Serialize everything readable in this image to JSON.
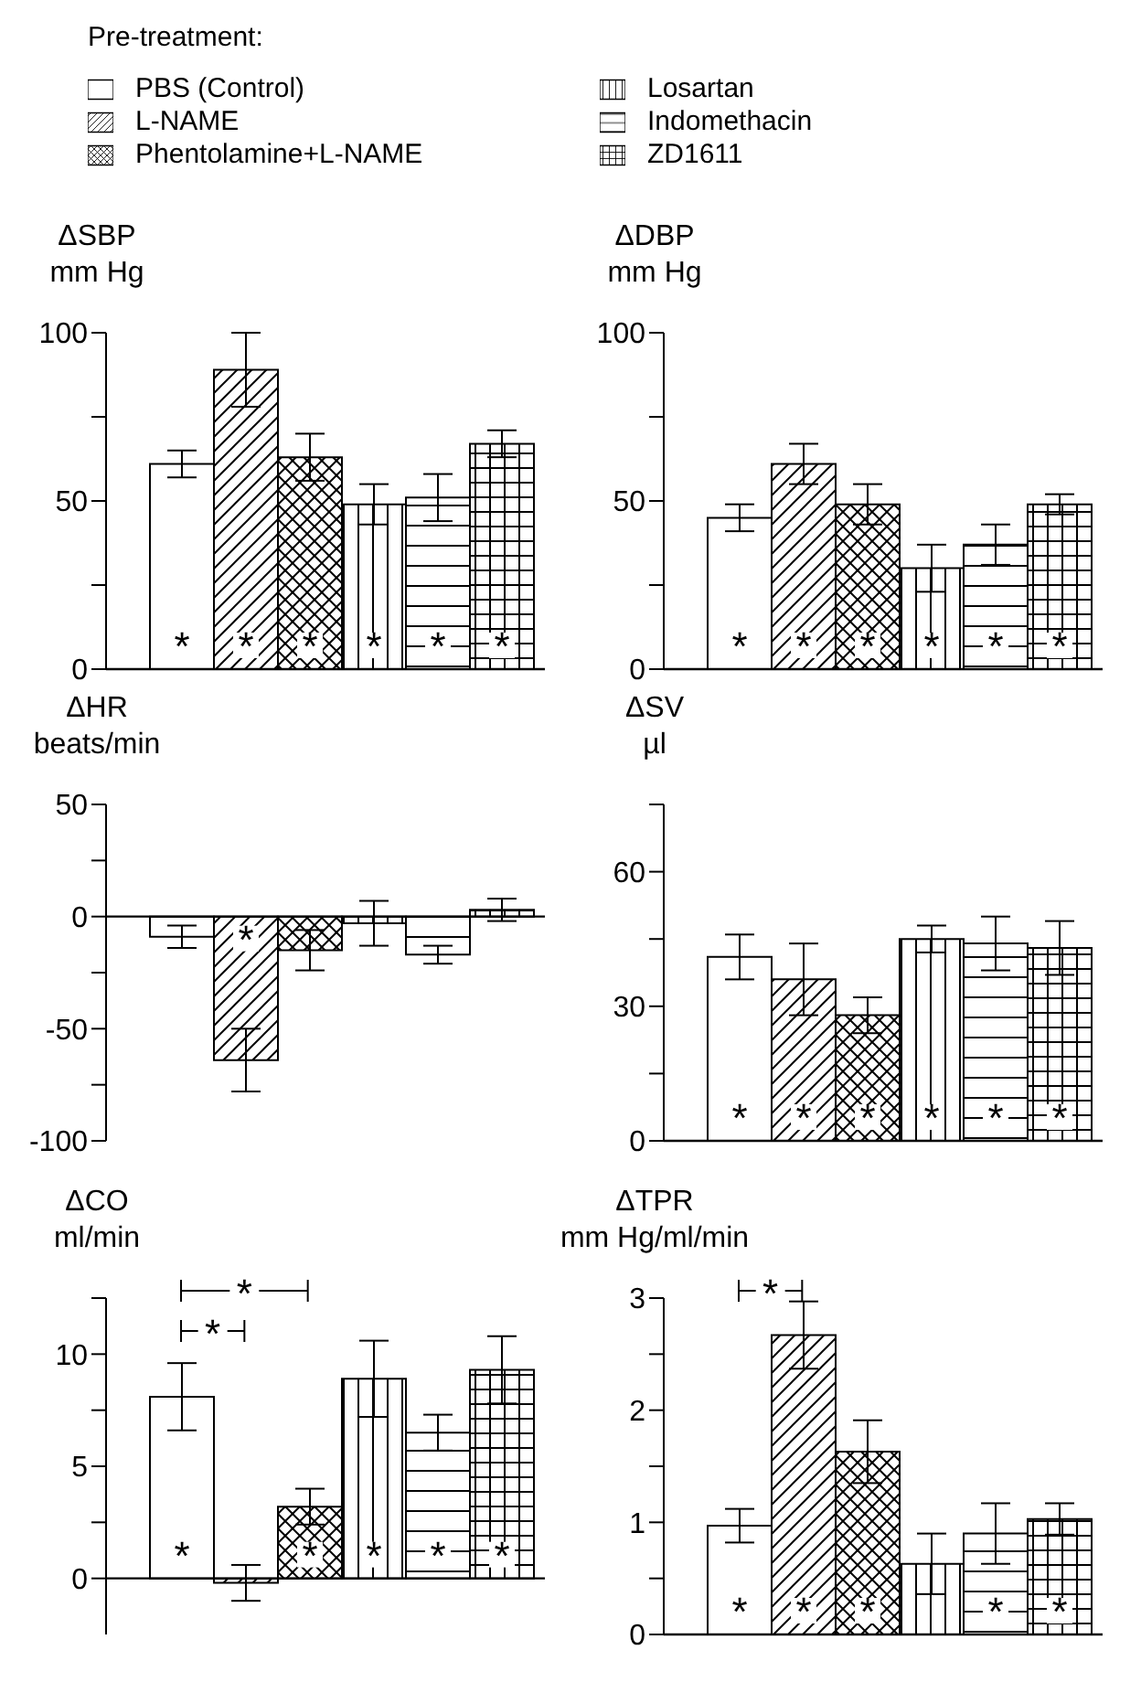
{
  "chart_data": [
    {
      "type": "bar",
      "title": "ΔSBP",
      "ylabel": "mm Hg",
      "legend_title": "Pre-treatment:",
      "legend": "top",
      "categories": [
        null
      ],
      "ylim": [
        0,
        100
      ],
      "yticks": [
        0,
        {
          "value": 25,
          "label": null
        },
        50,
        {
          "value": 75,
          "label": null
        },
        100
      ],
      "series": [
        {
          "name": "PBS (Control)",
          "color": "#000000",
          "values": [
            61
          ],
          "errors": [
            4
          ],
          "value_labels": [
            "*"
          ]
        },
        {
          "name": "L-NAME",
          "color": "#000000",
          "values": [
            89
          ],
          "errors": [
            11
          ],
          "value_labels": [
            "*"
          ]
        },
        {
          "name": "Phentolamine+L-NAME",
          "color": "#000000",
          "values": [
            63
          ],
          "errors": [
            7
          ],
          "value_labels": [
            "*"
          ]
        },
        {
          "name": "Losartan",
          "color": "#000000",
          "values": [
            49
          ],
          "errors": [
            6
          ],
          "value_labels": [
            "*"
          ]
        },
        {
          "name": "Indomethacin",
          "color": "#000000",
          "values": [
            51
          ],
          "errors": [
            7
          ],
          "value_labels": [
            "*"
          ]
        },
        {
          "name": "ZD1611",
          "color": "#000000",
          "values": [
            67
          ],
          "errors": [
            4
          ],
          "value_labels": [
            "*"
          ]
        }
      ]
    },
    {
      "type": "bar",
      "title": "ΔDBP",
      "ylabel": "mm Hg",
      "categories": [
        null
      ],
      "ylim": [
        0,
        100
      ],
      "yticks": [
        0,
        {
          "value": 25,
          "label": null
        },
        50,
        {
          "value": 75,
          "label": null
        },
        100
      ],
      "series": [
        {
          "color": "#000000",
          "values": [
            45
          ],
          "errors": [
            4
          ],
          "value_labels": [
            "*"
          ]
        },
        {
          "color": "#000000",
          "values": [
            61
          ],
          "errors": [
            6
          ],
          "value_labels": [
            "*"
          ]
        },
        {
          "color": "#000000",
          "values": [
            49
          ],
          "errors": [
            6
          ],
          "value_labels": [
            "*"
          ]
        },
        {
          "color": "#000000",
          "values": [
            30
          ],
          "errors": [
            7
          ],
          "value_labels": [
            "*"
          ]
        },
        {
          "color": "#000000",
          "values": [
            37
          ],
          "errors": [
            6
          ],
          "value_labels": [
            "*"
          ]
        },
        {
          "color": "#000000",
          "values": [
            49
          ],
          "errors": [
            3
          ],
          "value_labels": [
            "*"
          ]
        }
      ]
    },
    {
      "type": "bar",
      "title": "ΔHR",
      "ylabel": "beats/min",
      "categories": [
        null
      ],
      "ylim": [
        -100,
        50
      ],
      "yticks": [
        -100,
        {
          "value": -75,
          "label": null
        },
        -50,
        {
          "value": -25,
          "label": null
        },
        0,
        {
          "value": 25,
          "label": null
        },
        50
      ],
      "series": [
        {
          "color": "#000000",
          "values": [
            -9
          ],
          "errors": [
            5
          ],
          "value_labels": [
            null
          ]
        },
        {
          "color": "#000000",
          "values": [
            -64
          ],
          "errors": [
            14
          ],
          "value_labels": [
            "*"
          ]
        },
        {
          "color": "#000000",
          "values": [
            -15
          ],
          "errors": [
            9
          ],
          "value_labels": [
            null
          ]
        },
        {
          "color": "#000000",
          "values": [
            -3
          ],
          "errors": [
            10
          ],
          "value_labels": [
            null
          ]
        },
        {
          "color": "#000000",
          "values": [
            -17
          ],
          "errors": [
            4
          ],
          "value_labels": [
            null
          ]
        },
        {
          "color": "#000000",
          "values": [
            3
          ],
          "errors": [
            5
          ],
          "value_labels": [
            null
          ]
        }
      ]
    },
    {
      "type": "bar",
      "title": "ΔSV",
      "ylabel": "µl",
      "categories": [
        null
      ],
      "ylim": [
        0,
        75
      ],
      "yticks": [
        0,
        {
          "value": 15,
          "label": null
        },
        30,
        {
          "value": 45,
          "label": null
        },
        60,
        {
          "value": 75,
          "label": null
        }
      ],
      "series": [
        {
          "color": "#000000",
          "values": [
            41
          ],
          "errors": [
            5
          ],
          "value_labels": [
            "*"
          ]
        },
        {
          "color": "#000000",
          "values": [
            36
          ],
          "errors": [
            8
          ],
          "value_labels": [
            "*"
          ]
        },
        {
          "color": "#000000",
          "values": [
            28
          ],
          "errors": [
            4
          ],
          "value_labels": [
            "*"
          ]
        },
        {
          "color": "#000000",
          "values": [
            45
          ],
          "errors": [
            3
          ],
          "value_labels": [
            "*"
          ]
        },
        {
          "color": "#000000",
          "values": [
            44
          ],
          "errors": [
            6
          ],
          "value_labels": [
            "*"
          ]
        },
        {
          "color": "#000000",
          "values": [
            43
          ],
          "errors": [
            6
          ],
          "value_labels": [
            "*"
          ]
        }
      ]
    },
    {
      "type": "bar",
      "title": "ΔCO",
      "ylabel": "ml/min",
      "categories": [
        null
      ],
      "ylim": [
        -2.5,
        12.5
      ],
      "yticks": [
        0,
        {
          "value": 2.5,
          "label": null
        },
        5,
        {
          "value": 7.5,
          "label": null
        },
        10,
        {
          "value": 12.5,
          "label": null
        }
      ],
      "annotations": [
        "*",
        "*"
      ],
      "series": [
        {
          "color": "#000000",
          "values": [
            8.1
          ],
          "errors": [
            1.5
          ],
          "value_labels": [
            "*"
          ]
        },
        {
          "color": "#000000",
          "values": [
            -0.2
          ],
          "errors": [
            0.8
          ],
          "value_labels": [
            null
          ]
        },
        {
          "color": "#000000",
          "values": [
            3.2
          ],
          "errors": [
            0.8
          ],
          "value_labels": [
            "*"
          ]
        },
        {
          "color": "#000000",
          "values": [
            8.9
          ],
          "errors": [
            1.7
          ],
          "value_labels": [
            "*"
          ]
        },
        {
          "color": "#000000",
          "values": [
            6.5
          ],
          "errors": [
            0.8
          ],
          "value_labels": [
            "*"
          ]
        },
        {
          "color": "#000000",
          "values": [
            9.3
          ],
          "errors": [
            1.5
          ],
          "value_labels": [
            "*"
          ]
        }
      ]
    },
    {
      "type": "bar",
      "title": "ΔTPR",
      "ylabel": "mm Hg/ml/min",
      "categories": [
        null
      ],
      "ylim": [
        0,
        3
      ],
      "yticks": [
        0,
        {
          "value": 0.5,
          "label": null
        },
        1,
        {
          "value": 1.5,
          "label": null
        },
        2,
        {
          "value": 2.5,
          "label": null
        },
        3
      ],
      "annotations": [
        "*"
      ],
      "series": [
        {
          "color": "#000000",
          "values": [
            0.97
          ],
          "errors": [
            0.15
          ],
          "value_labels": [
            "*"
          ]
        },
        {
          "color": "#000000",
          "values": [
            2.67
          ],
          "errors": [
            0.3
          ],
          "value_labels": [
            "*"
          ]
        },
        {
          "color": "#000000",
          "values": [
            1.63
          ],
          "errors": [
            0.28
          ],
          "value_labels": [
            "*"
          ]
        },
        {
          "color": "#000000",
          "values": [
            0.63
          ],
          "errors": [
            0.27
          ],
          "value_labels": [
            null
          ]
        },
        {
          "color": "#000000",
          "values": [
            0.9
          ],
          "errors": [
            0.27
          ],
          "value_labels": [
            "*"
          ]
        },
        {
          "color": "#000000",
          "values": [
            1.03
          ],
          "errors": [
            0.14
          ],
          "value_labels": [
            "*"
          ]
        }
      ]
    }
  ]
}
